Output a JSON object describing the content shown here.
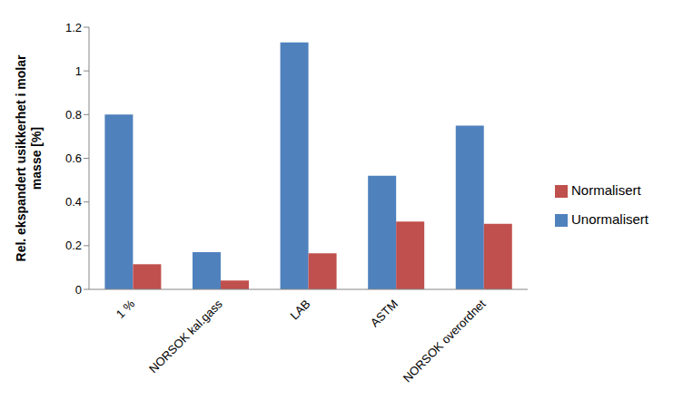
{
  "chart_data": {
    "type": "bar",
    "y_label": "Rel. ekspandert usikkerhet i molar masse [%]",
    "categories": [
      "1 %",
      "NORSOK kal.gass",
      "LAB",
      "ASTM",
      "NORSOK overordnet"
    ],
    "series": [
      {
        "name": "Unormalisert",
        "color": "#4f81bd",
        "values": [
          0.8,
          0.17,
          1.13,
          0.52,
          0.75
        ]
      },
      {
        "name": "Normalisert",
        "color": "#c0504d",
        "values": [
          0.115,
          0.04,
          0.165,
          0.31,
          0.3
        ]
      }
    ],
    "ylim": [
      0,
      1.2
    ],
    "yticks": [
      0,
      0.2,
      0.4,
      0.6,
      0.8,
      1,
      1.2
    ],
    "grid": false,
    "legend": "right"
  }
}
